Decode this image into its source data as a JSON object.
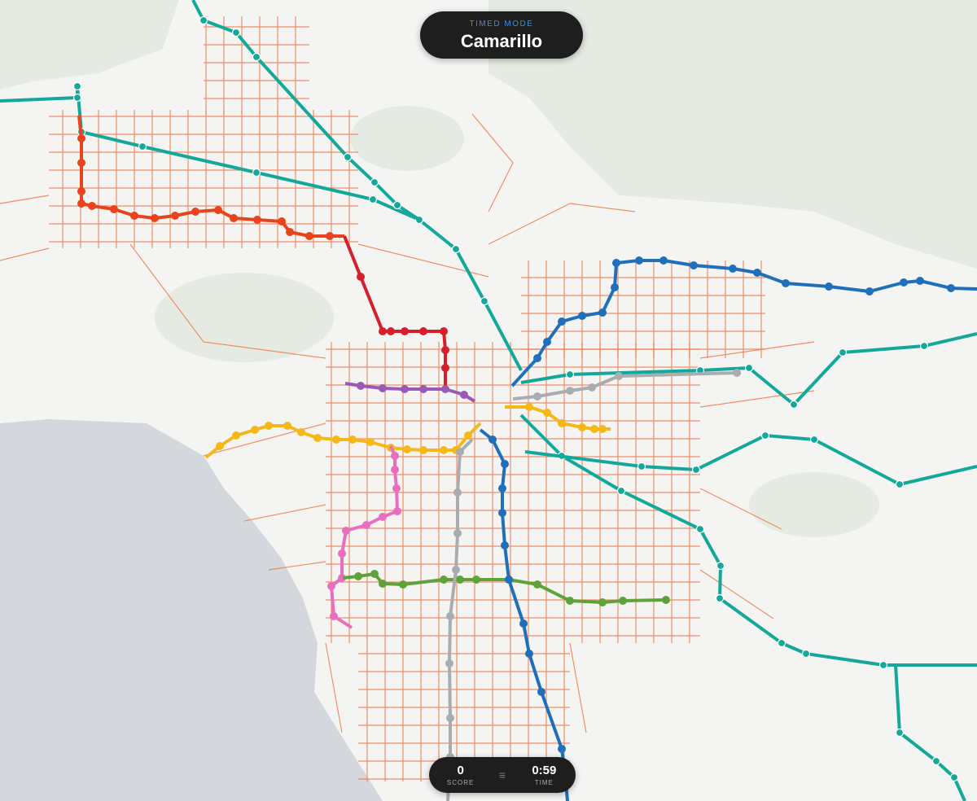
{
  "header": {
    "mode": "TIMED MODE",
    "station": "Camarillo"
  },
  "scoreboard": {
    "score": {
      "value": "0",
      "label": "SCORE"
    },
    "separator": "≡",
    "time": {
      "value": "0:59",
      "label": "TIME"
    }
  }
}
